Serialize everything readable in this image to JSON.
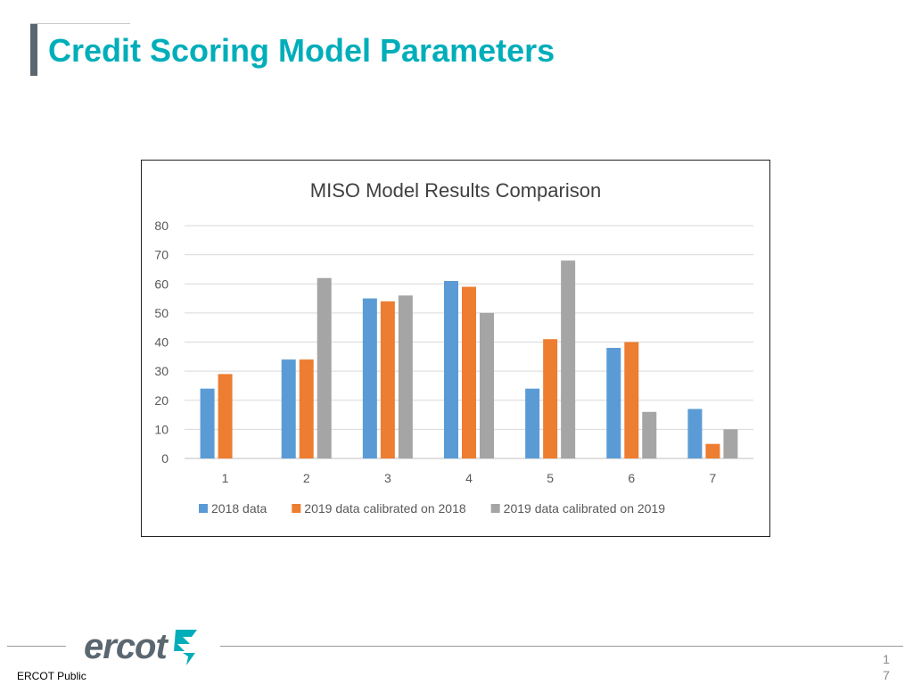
{
  "slide": {
    "title": "Credit Scoring Model Parameters"
  },
  "footer": {
    "label": "ERCOT Public",
    "logo_text": "ercot",
    "page_number": "1\n7"
  },
  "colors": {
    "title": "#00aeba",
    "series": [
      "#5b9bd5",
      "#ed7d31",
      "#a5a5a5"
    ],
    "logo": "#5b6770",
    "logo_mark": "#00aeba"
  },
  "icons": {
    "logo_mark": "ercot-star-icon"
  },
  "chart_data": {
    "type": "bar",
    "title": "MISO Model Results Comparison",
    "xlabel": "",
    "ylabel": "",
    "categories": [
      "1",
      "2",
      "3",
      "4",
      "5",
      "6",
      "7"
    ],
    "series": [
      {
        "name": "2018 data",
        "values": [
          24,
          34,
          55,
          61,
          24,
          38,
          17
        ]
      },
      {
        "name": "2019 data calibrated on 2018",
        "values": [
          29,
          34,
          54,
          59,
          41,
          40,
          5
        ]
      },
      {
        "name": "2019 data calibrated on 2019",
        "values": [
          0,
          62,
          56,
          50,
          68,
          16,
          10
        ]
      }
    ],
    "ylim": [
      0,
      80
    ],
    "yticks": [
      0,
      10,
      20,
      30,
      40,
      50,
      60,
      70,
      80
    ],
    "grid": true,
    "legend": "bottom"
  }
}
